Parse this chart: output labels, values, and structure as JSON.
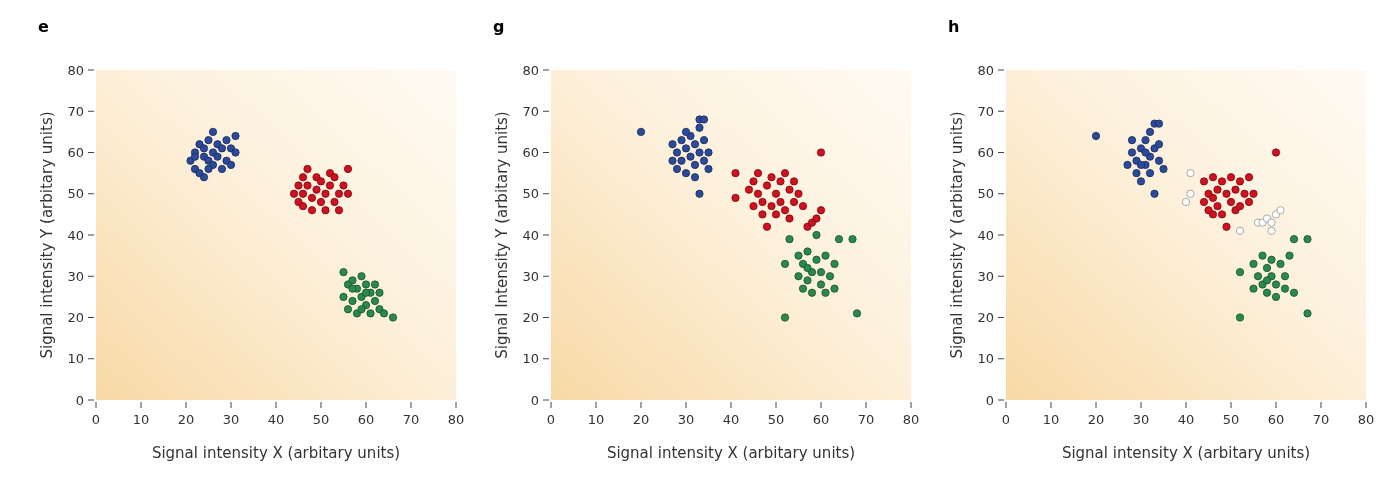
{
  "chart_data": [
    {
      "type": "scatter",
      "title": "e",
      "xlabel": "Signal intensity X (arbitary units)",
      "ylabel": "Signal intensity Y (arbitary units)",
      "xlim": [
        0,
        80
      ],
      "ylim": [
        0,
        80
      ],
      "xticks": [
        0,
        10,
        20,
        30,
        40,
        50,
        60,
        70,
        80
      ],
      "yticks": [
        0,
        10,
        20,
        30,
        40,
        50,
        60,
        70,
        80
      ],
      "marker": "circle",
      "series": [
        {
          "color": "#2b4a9b",
          "x": [
            21,
            22,
            22,
            23,
            23,
            24,
            24,
            24,
            25,
            25,
            26,
            26,
            26,
            27,
            27,
            28,
            28,
            29,
            29,
            30,
            30,
            31,
            31,
            22,
            25
          ],
          "values": [
            58,
            60,
            56,
            62,
            55,
            59,
            61,
            54,
            63,
            58,
            60,
            65,
            57,
            62,
            59,
            61,
            56,
            58,
            63,
            61,
            57,
            64,
            60,
            59,
            56
          ]
        },
        {
          "color": "#d0111f",
          "x": [
            44,
            45,
            45,
            46,
            46,
            46,
            47,
            47,
            48,
            48,
            49,
            49,
            50,
            50,
            51,
            51,
            52,
            52,
            53,
            53,
            54,
            54,
            55,
            56,
            56
          ],
          "values": [
            50,
            52,
            48,
            54,
            50,
            47,
            56,
            52,
            49,
            46,
            54,
            51,
            48,
            53,
            46,
            50,
            55,
            52,
            48,
            54,
            50,
            46,
            52,
            56,
            50
          ]
        },
        {
          "color": "#2a8a4c",
          "x": [
            55,
            55,
            56,
            56,
            57,
            57,
            58,
            58,
            59,
            59,
            60,
            60,
            61,
            61,
            62,
            62,
            63,
            63,
            64,
            66,
            57,
            59,
            60
          ],
          "values": [
            31,
            25,
            28,
            22,
            29,
            24,
            27,
            21,
            30,
            25,
            28,
            23,
            26,
            21,
            28,
            24,
            22,
            26,
            21,
            20,
            27,
            22,
            26
          ]
        }
      ]
    },
    {
      "type": "scatter",
      "title": "g",
      "xlabel": "Signal intensity X (arbitary units)",
      "ylabel": "Signal Intensity Y (arbitary units)",
      "xlim": [
        0,
        80
      ],
      "ylim": [
        0,
        80
      ],
      "xticks": [
        0,
        10,
        20,
        30,
        40,
        50,
        60,
        70,
        80
      ],
      "yticks": [
        0,
        10,
        20,
        30,
        40,
        50,
        60,
        70,
        80
      ],
      "marker": "circle",
      "series": [
        {
          "color": "#2b4a9b",
          "x": [
            20,
            27,
            27,
            28,
            28,
            29,
            29,
            30,
            30,
            31,
            31,
            32,
            32,
            32,
            33,
            33,
            33,
            34,
            34,
            34,
            35,
            35,
            33,
            30
          ],
          "values": [
            65,
            58,
            62,
            56,
            60,
            63,
            58,
            55,
            61,
            59,
            64,
            57,
            54,
            62,
            60,
            68,
            66,
            68,
            58,
            63,
            56,
            60,
            50,
            65
          ]
        },
        {
          "color": "#d0111f",
          "x": [
            41,
            41,
            44,
            45,
            45,
            46,
            46,
            47,
            47,
            48,
            48,
            49,
            49,
            50,
            50,
            51,
            51,
            52,
            52,
            53,
            53,
            54,
            54,
            55,
            56,
            57,
            58,
            59,
            60,
            60
          ],
          "values": [
            55,
            49,
            51,
            47,
            53,
            55,
            50,
            48,
            45,
            52,
            42,
            54,
            47,
            50,
            45,
            53,
            48,
            55,
            46,
            51,
            44,
            53,
            48,
            50,
            47,
            42,
            43,
            44,
            46,
            60
          ]
        },
        {
          "color": "#2a8a4c",
          "x": [
            52,
            52,
            53,
            55,
            55,
            56,
            56,
            57,
            57,
            58,
            58,
            59,
            59,
            60,
            60,
            61,
            61,
            62,
            63,
            63,
            64,
            67,
            68,
            57
          ],
          "values": [
            20,
            33,
            39,
            35,
            30,
            27,
            33,
            29,
            36,
            31,
            26,
            40,
            34,
            28,
            31,
            35,
            26,
            30,
            33,
            27,
            39,
            39,
            21,
            32
          ]
        }
      ]
    },
    {
      "type": "scatter",
      "title": "h",
      "xlabel": "Signal intensity X (arbitary units)",
      "ylabel": "Signal intensity Y (arbitary units)",
      "xlim": [
        0,
        80
      ],
      "ylim": [
        0,
        80
      ],
      "xticks": [
        0,
        10,
        20,
        30,
        40,
        50,
        60,
        70,
        80
      ],
      "yticks": [
        0,
        10,
        20,
        30,
        40,
        50,
        60,
        70,
        80
      ],
      "marker": "circle",
      "series": [
        {
          "color": "#2b4a9b",
          "x": [
            20,
            27,
            28,
            28,
            29,
            29,
            30,
            30,
            31,
            31,
            32,
            32,
            32,
            33,
            33,
            34,
            34,
            34,
            35,
            33,
            31,
            30
          ],
          "values": [
            64,
            57,
            60,
            63,
            55,
            58,
            61,
            53,
            57,
            63,
            59,
            55,
            65,
            61,
            67,
            67,
            58,
            62,
            56,
            50,
            60,
            57
          ]
        },
        {
          "color": "#d0111f",
          "x": [
            44,
            44,
            45,
            45,
            46,
            46,
            47,
            47,
            48,
            48,
            49,
            49,
            50,
            50,
            51,
            51,
            52,
            52,
            53,
            54,
            54,
            55,
            60,
            46
          ],
          "values": [
            53,
            48,
            50,
            46,
            54,
            49,
            51,
            47,
            53,
            45,
            50,
            42,
            54,
            48,
            51,
            46,
            53,
            47,
            50,
            54,
            48,
            50,
            60,
            45
          ]
        },
        {
          "color": "#ffffff",
          "x": [
            41,
            40,
            41,
            52,
            56,
            57,
            58,
            59,
            60,
            61,
            59
          ],
          "values": [
            55,
            48,
            50,
            41,
            43,
            43,
            44,
            41,
            45,
            46,
            43
          ]
        },
        {
          "color": "#2a8a4c",
          "x": [
            52,
            52,
            55,
            55,
            56,
            57,
            57,
            58,
            58,
            59,
            59,
            60,
            60,
            61,
            62,
            62,
            63,
            64,
            64,
            67,
            67,
            58
          ],
          "values": [
            20,
            31,
            27,
            33,
            30,
            35,
            28,
            32,
            26,
            30,
            34,
            28,
            25,
            33,
            30,
            27,
            35,
            26,
            39,
            39,
            21,
            29
          ]
        }
      ]
    }
  ]
}
